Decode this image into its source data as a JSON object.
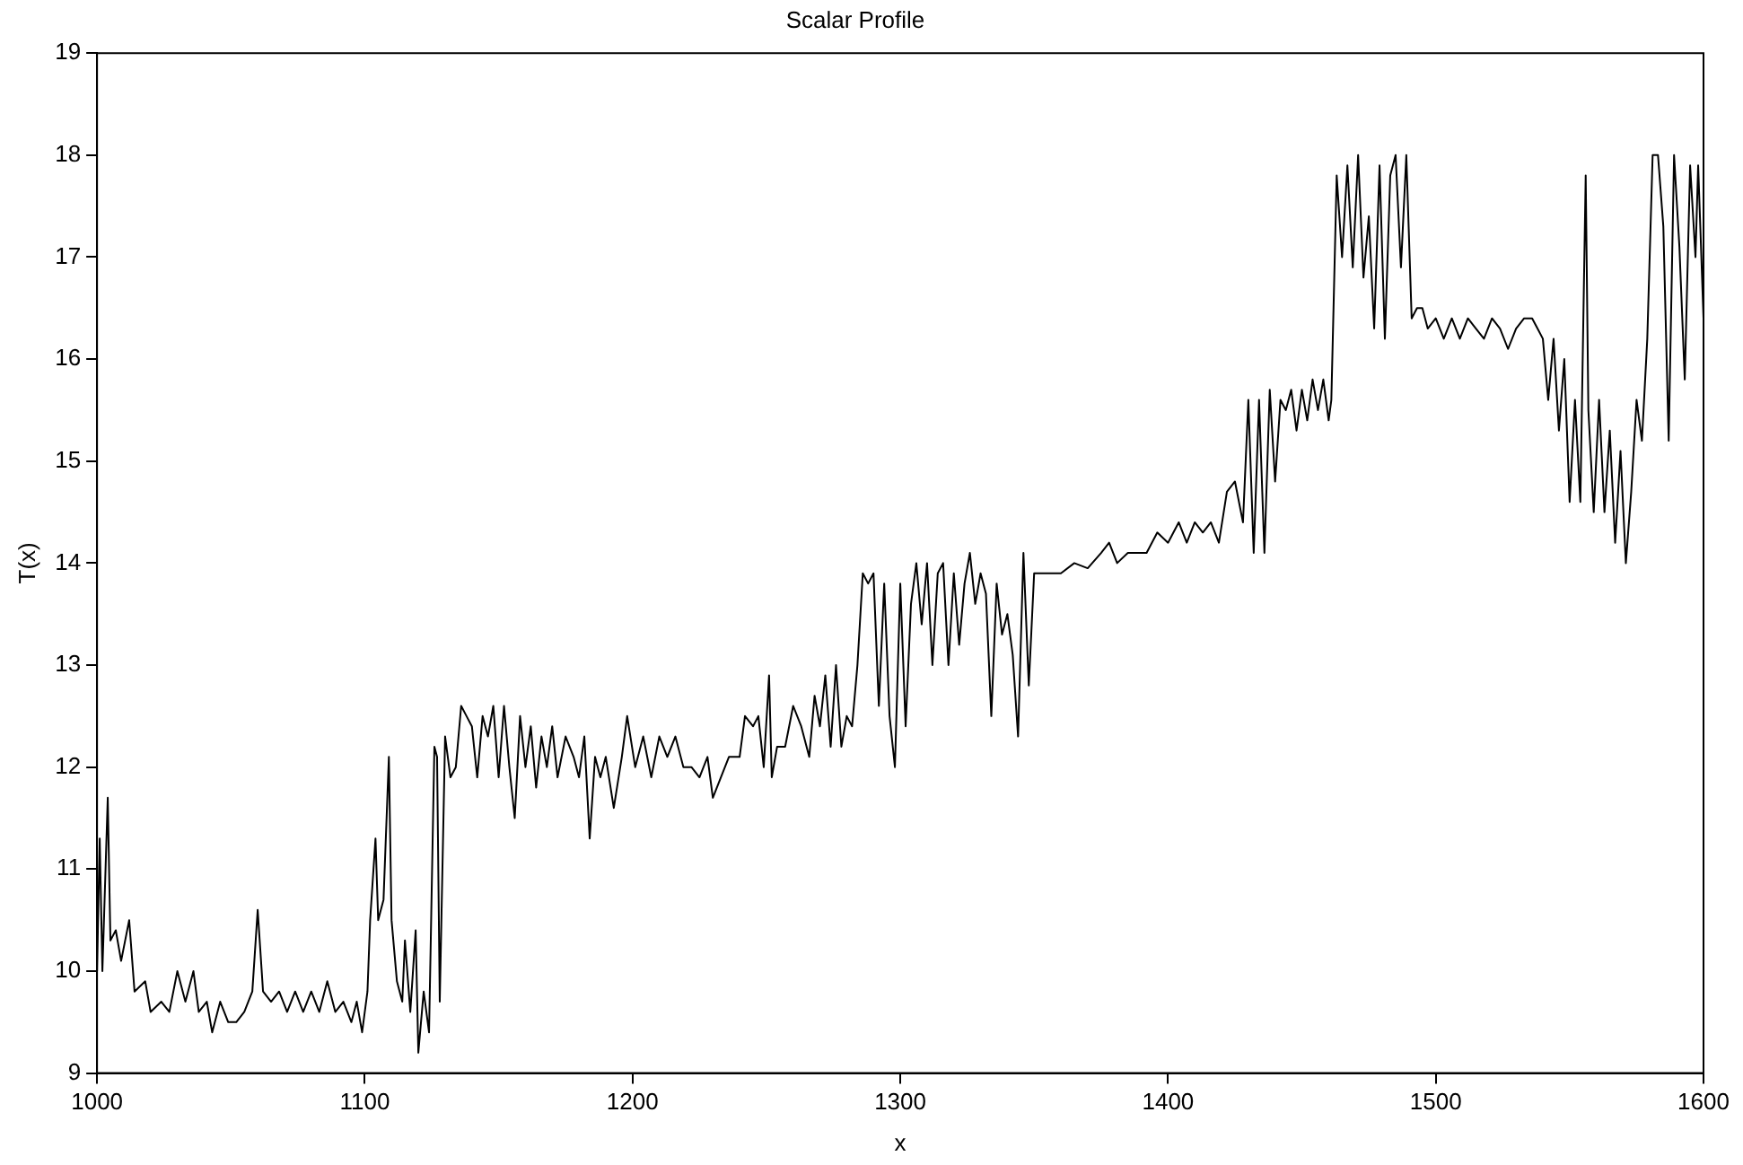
{
  "chart_data": {
    "type": "line",
    "title": "Scalar Profile",
    "xlabel": "x",
    "ylabel": "T(x)",
    "xlim": [
      1000,
      1600
    ],
    "xticks": [
      1000,
      1100,
      1200,
      1300,
      1400,
      1500,
      1600
    ],
    "ylim": [
      9,
      19
    ],
    "yticks": [
      9,
      10,
      11,
      12,
      13,
      14,
      15,
      16,
      17,
      18,
      19
    ],
    "grid": false,
    "legend": false,
    "marker": "none",
    "line_style": "solid",
    "series": [
      {
        "color": "#000000",
        "x": [
          1000,
          1001,
          1002,
          1004,
          1005,
          1007,
          1009,
          1012,
          1014,
          1018,
          1020,
          1024,
          1027,
          1030,
          1033,
          1036,
          1038,
          1041,
          1043,
          1046,
          1049,
          1052,
          1055,
          1058,
          1060,
          1062,
          1065,
          1068,
          1071,
          1074,
          1077,
          1080,
          1083,
          1086,
          1089,
          1092,
          1095,
          1097,
          1099,
          1101,
          1102,
          1104,
          1105,
          1107,
          1109,
          1110,
          1112,
          1114,
          1115,
          1117,
          1119,
          1120,
          1122,
          1124,
          1126,
          1127,
          1128,
          1130,
          1132,
          1134,
          1136,
          1138,
          1140,
          1142,
          1144,
          1146,
          1148,
          1150,
          1152,
          1154,
          1156,
          1158,
          1160,
          1162,
          1164,
          1166,
          1168,
          1170,
          1172,
          1175,
          1178,
          1180,
          1182,
          1184,
          1186,
          1188,
          1190,
          1193,
          1196,
          1198,
          1201,
          1204,
          1207,
          1210,
          1213,
          1216,
          1219,
          1222,
          1225,
          1228,
          1230,
          1233,
          1236,
          1240,
          1242,
          1245,
          1247,
          1249,
          1251,
          1252,
          1254,
          1257,
          1260,
          1263,
          1266,
          1268,
          1270,
          1272,
          1274,
          1276,
          1278,
          1280,
          1282,
          1284,
          1286,
          1288,
          1290,
          1292,
          1294,
          1296,
          1298,
          1300,
          1302,
          1304,
          1306,
          1308,
          1310,
          1312,
          1314,
          1316,
          1318,
          1320,
          1322,
          1324,
          1326,
          1328,
          1330,
          1332,
          1334,
          1336,
          1338,
          1340,
          1342,
          1344,
          1346,
          1348,
          1350,
          1355,
          1360,
          1365,
          1370,
          1375,
          1378,
          1381,
          1385,
          1388,
          1392,
          1396,
          1400,
          1404,
          1407,
          1410,
          1413,
          1416,
          1419,
          1422,
          1425,
          1428,
          1430,
          1432,
          1434,
          1436,
          1438,
          1440,
          1442,
          1444,
          1446,
          1448,
          1450,
          1452,
          1454,
          1456,
          1458,
          1460,
          1461,
          1463,
          1465,
          1467,
          1469,
          1471,
          1473,
          1475,
          1477,
          1479,
          1481,
          1483,
          1485,
          1487,
          1489,
          1491,
          1493,
          1495,
          1497,
          1500,
          1503,
          1506,
          1509,
          1512,
          1515,
          1518,
          1521,
          1524,
          1527,
          1530,
          1533,
          1536,
          1538,
          1540,
          1542,
          1544,
          1546,
          1548,
          1550,
          1552,
          1554,
          1556,
          1557,
          1559,
          1561,
          1563,
          1565,
          1567,
          1569,
          1571,
          1573,
          1575,
          1577,
          1579,
          1581,
          1583,
          1585,
          1587,
          1589,
          1591,
          1593,
          1595,
          1597,
          1598,
          1600
        ],
        "values": [
          10.0,
          11.3,
          10.0,
          11.7,
          10.3,
          10.4,
          10.1,
          10.5,
          9.8,
          9.9,
          9.6,
          9.7,
          9.6,
          10.0,
          9.7,
          10.0,
          9.6,
          9.7,
          9.4,
          9.7,
          9.5,
          9.5,
          9.6,
          9.8,
          10.6,
          9.8,
          9.7,
          9.8,
          9.6,
          9.8,
          9.6,
          9.8,
          9.6,
          9.9,
          9.6,
          9.7,
          9.5,
          9.7,
          9.4,
          9.8,
          10.5,
          11.3,
          10.5,
          10.7,
          12.1,
          10.5,
          9.9,
          9.7,
          10.3,
          9.6,
          10.4,
          9.2,
          9.8,
          9.4,
          12.2,
          12.1,
          9.7,
          12.3,
          11.9,
          12.0,
          12.6,
          12.5,
          12.4,
          11.9,
          12.5,
          12.3,
          12.6,
          11.9,
          12.6,
          12.0,
          11.5,
          12.5,
          12.0,
          12.4,
          11.8,
          12.3,
          12.0,
          12.4,
          11.9,
          12.3,
          12.1,
          11.9,
          12.3,
          11.3,
          12.1,
          11.9,
          12.1,
          11.6,
          12.1,
          12.5,
          12.0,
          12.3,
          11.9,
          12.3,
          12.1,
          12.3,
          12.0,
          12.0,
          11.9,
          12.1,
          11.7,
          11.9,
          12.1,
          12.1,
          12.5,
          12.4,
          12.5,
          12.0,
          12.9,
          11.9,
          12.2,
          12.2,
          12.6,
          12.4,
          12.1,
          12.7,
          12.4,
          12.9,
          12.2,
          13.0,
          12.2,
          12.5,
          12.4,
          13.0,
          13.9,
          13.8,
          13.9,
          12.6,
          13.8,
          12.5,
          12.0,
          13.8,
          12.4,
          13.6,
          14.0,
          13.4,
          14.0,
          13.0,
          13.9,
          14.0,
          13.0,
          13.9,
          13.2,
          13.8,
          14.1,
          13.6,
          13.9,
          13.7,
          12.5,
          13.8,
          13.3,
          13.5,
          13.1,
          12.3,
          14.1,
          12.8,
          13.9,
          13.9,
          13.9,
          14.0,
          13.95,
          14.1,
          14.2,
          14.0,
          14.1,
          14.1,
          14.1,
          14.3,
          14.2,
          14.4,
          14.2,
          14.4,
          14.3,
          14.4,
          14.2,
          14.7,
          14.8,
          14.4,
          15.6,
          14.1,
          15.6,
          14.1,
          15.7,
          14.8,
          15.6,
          15.5,
          15.7,
          15.3,
          15.7,
          15.4,
          15.8,
          15.5,
          15.8,
          15.4,
          15.6,
          17.8,
          17.0,
          17.9,
          16.9,
          18.0,
          16.8,
          17.4,
          16.3,
          17.9,
          16.2,
          17.8,
          18.0,
          16.9,
          18.0,
          16.4,
          16.5,
          16.5,
          16.3,
          16.4,
          16.2,
          16.4,
          16.2,
          16.4,
          16.3,
          16.2,
          16.4,
          16.3,
          16.1,
          16.3,
          16.4,
          16.4,
          16.3,
          16.2,
          15.6,
          16.2,
          15.3,
          16.0,
          14.6,
          15.6,
          14.6,
          17.8,
          15.5,
          14.5,
          15.6,
          14.5,
          15.3,
          14.2,
          15.1,
          14.0,
          14.7,
          15.6,
          15.2,
          16.2,
          18.0,
          18.0,
          17.3,
          15.2,
          18.0,
          17.1,
          15.8,
          17.9,
          17.0,
          17.9,
          16.4
        ]
      }
    ]
  }
}
